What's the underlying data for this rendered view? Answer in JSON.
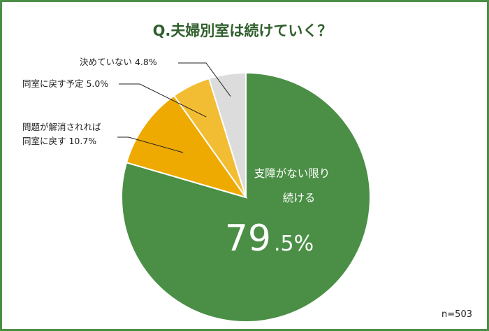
{
  "chart_data": {
    "type": "pie",
    "title": "Q.夫婦別室は続けていく？",
    "slices": [
      {
        "label_lines": [
          "支障がない限り",
          "続ける"
        ],
        "value": 79.5,
        "value_main": "79",
        "value_decimal": ".5%",
        "color": "#4a8f45"
      },
      {
        "label_lines": [
          "問題が解消されれば",
          "同室に戻す 10.7%"
        ],
        "value": 10.7,
        "color": "#eeaa00"
      },
      {
        "label_lines": [
          "同室に戻す予定 5.0%"
        ],
        "value": 5.0,
        "color": "#f2bc33"
      },
      {
        "label_lines": [
          "決めていない 4.8%"
        ],
        "value": 4.8,
        "color": "#dcdcdc"
      }
    ],
    "n_label": "n=503"
  }
}
